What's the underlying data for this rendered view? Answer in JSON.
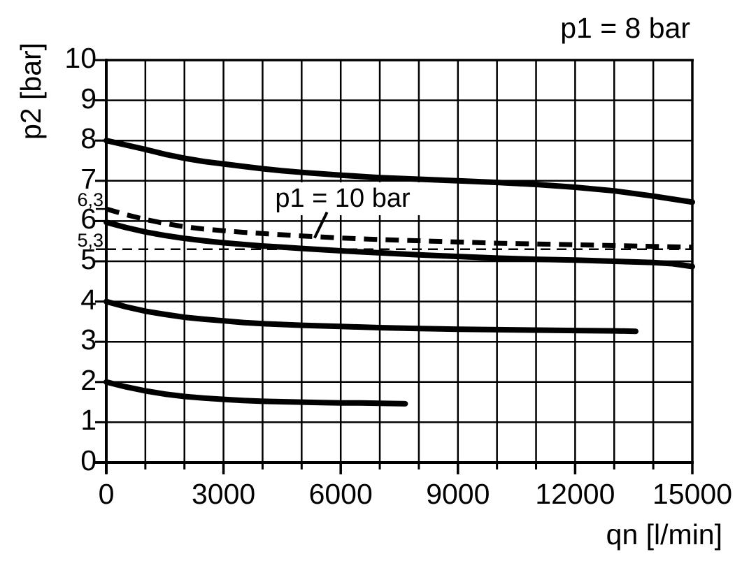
{
  "chart_data": {
    "type": "line",
    "title": "p1 = 8 bar",
    "xlabel": "qn [l/min]",
    "ylabel": "p2 [bar]",
    "xlim": [
      0,
      15000
    ],
    "ylim": [
      0,
      10
    ],
    "grid": "on",
    "x_major_ticks": [
      {
        "value": 0,
        "label": "0"
      },
      {
        "value": 3000,
        "label": "3000"
      },
      {
        "value": 6000,
        "label": "6000"
      },
      {
        "value": 9000,
        "label": "9000"
      },
      {
        "value": 12000,
        "label": "12000"
      },
      {
        "value": 15000,
        "label": "15000"
      }
    ],
    "x_minor_tick_step": 1000,
    "y_ticks": [
      {
        "value": 0,
        "label": "0"
      },
      {
        "value": 1,
        "label": "1"
      },
      {
        "value": 2,
        "label": "2"
      },
      {
        "value": 3,
        "label": "3"
      },
      {
        "value": 4,
        "label": "4"
      },
      {
        "value": 5,
        "label": "5"
      },
      {
        "value": 6,
        "label": "6"
      },
      {
        "value": 7,
        "label": "7"
      },
      {
        "value": 8,
        "label": "8"
      },
      {
        "value": 9,
        "label": "9"
      },
      {
        "value": 10,
        "label": "10"
      }
    ],
    "y_special_ticks": [
      {
        "value": 6.3,
        "label": "6,3"
      },
      {
        "value": 5.3,
        "label": "5,3"
      }
    ],
    "annotation": {
      "text": "p1 = 10 bar",
      "leader_from": [
        5650,
        6.22
      ],
      "leader_to": [
        5330,
        5.58
      ]
    },
    "line_color": "#000000",
    "background_color": "#ffffff",
    "series": [
      {
        "name": "p2-set-8-bar",
        "style": "solid",
        "points": [
          [
            0,
            8.0
          ],
          [
            500,
            7.89
          ],
          [
            1000,
            7.78
          ],
          [
            1500,
            7.66
          ],
          [
            2000,
            7.56
          ],
          [
            2500,
            7.48
          ],
          [
            3000,
            7.42
          ],
          [
            3500,
            7.36
          ],
          [
            4000,
            7.3
          ],
          [
            4500,
            7.25
          ],
          [
            5000,
            7.21
          ],
          [
            6000,
            7.14
          ],
          [
            7000,
            7.08
          ],
          [
            8000,
            7.04
          ],
          [
            9000,
            7.0
          ],
          [
            10000,
            6.96
          ],
          [
            11000,
            6.91
          ],
          [
            12000,
            6.84
          ],
          [
            13000,
            6.75
          ],
          [
            14000,
            6.62
          ],
          [
            15000,
            6.47
          ]
        ]
      },
      {
        "name": "p1-10-bar-dashed",
        "style": "dashed-thick",
        "points": [
          [
            0,
            6.3
          ],
          [
            500,
            6.16
          ],
          [
            1000,
            6.04
          ],
          [
            1500,
            5.94
          ],
          [
            2000,
            5.86
          ],
          [
            2500,
            5.8
          ],
          [
            3000,
            5.76
          ],
          [
            3500,
            5.72
          ],
          [
            4000,
            5.69
          ],
          [
            4500,
            5.66
          ],
          [
            5000,
            5.63
          ],
          [
            6000,
            5.58
          ],
          [
            7000,
            5.54
          ],
          [
            8000,
            5.51
          ],
          [
            9000,
            5.48
          ],
          [
            10000,
            5.45
          ],
          [
            11000,
            5.43
          ],
          [
            12000,
            5.41
          ],
          [
            13000,
            5.39
          ],
          [
            14000,
            5.37
          ],
          [
            15000,
            5.35
          ]
        ]
      },
      {
        "name": "p2-set-6-bar",
        "style": "solid",
        "points": [
          [
            0,
            5.97
          ],
          [
            500,
            5.84
          ],
          [
            1000,
            5.73
          ],
          [
            1500,
            5.64
          ],
          [
            2000,
            5.57
          ],
          [
            2500,
            5.51
          ],
          [
            3000,
            5.46
          ],
          [
            3500,
            5.42
          ],
          [
            4000,
            5.38
          ],
          [
            4500,
            5.35
          ],
          [
            5000,
            5.32
          ],
          [
            6000,
            5.26
          ],
          [
            7000,
            5.21
          ],
          [
            8000,
            5.16
          ],
          [
            9000,
            5.12
          ],
          [
            10000,
            5.08
          ],
          [
            11000,
            5.05
          ],
          [
            12000,
            5.03
          ],
          [
            13000,
            5.0
          ],
          [
            14000,
            4.97
          ],
          [
            14500,
            4.94
          ],
          [
            15000,
            4.87
          ]
        ]
      },
      {
        "name": "p2-set-4-bar",
        "style": "solid",
        "points": [
          [
            0,
            4.0
          ],
          [
            500,
            3.87
          ],
          [
            1000,
            3.76
          ],
          [
            1500,
            3.68
          ],
          [
            2000,
            3.61
          ],
          [
            2500,
            3.56
          ],
          [
            3000,
            3.52
          ],
          [
            3500,
            3.48
          ],
          [
            4000,
            3.45
          ],
          [
            5000,
            3.41
          ],
          [
            6000,
            3.38
          ],
          [
            7000,
            3.35
          ],
          [
            8000,
            3.33
          ],
          [
            9000,
            3.31
          ],
          [
            10000,
            3.3
          ],
          [
            11000,
            3.29
          ],
          [
            12000,
            3.28
          ],
          [
            13000,
            3.27
          ],
          [
            13550,
            3.26
          ]
        ]
      },
      {
        "name": "p2-set-2-bar",
        "style": "solid",
        "points": [
          [
            0,
            2.0
          ],
          [
            500,
            1.88
          ],
          [
            1000,
            1.78
          ],
          [
            1500,
            1.7
          ],
          [
            2000,
            1.64
          ],
          [
            2500,
            1.6
          ],
          [
            3000,
            1.57
          ],
          [
            3500,
            1.54
          ],
          [
            4000,
            1.52
          ],
          [
            4500,
            1.51
          ],
          [
            5000,
            1.5
          ],
          [
            5500,
            1.49
          ],
          [
            6000,
            1.48
          ],
          [
            6500,
            1.48
          ],
          [
            7000,
            1.47
          ],
          [
            7650,
            1.46
          ]
        ]
      },
      {
        "name": "ref-line-5-3-bar",
        "style": "dashed-thin",
        "points": [
          [
            0,
            5.3
          ],
          [
            15000,
            5.3
          ]
        ]
      }
    ]
  }
}
